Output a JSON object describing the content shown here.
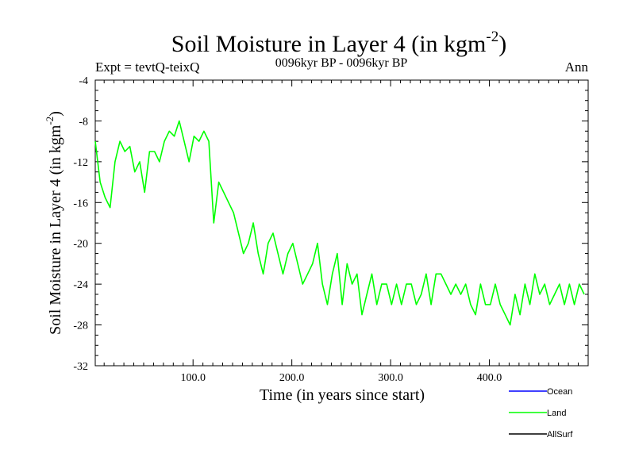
{
  "chart_data": {
    "type": "line",
    "title": "Soil Moisture in Layer 4 (in kgm",
    "title_sup": "-2",
    "title_close": ")",
    "subtitle": "0096kyr BP - 0096kyr BP",
    "expt_label": "Expt = tevtQ-teixQ",
    "season_label": "Ann",
    "xlabel": "Time (in years since start)",
    "ylabel": "Soil Moisture in Layer 4 (in kgm",
    "ylabel_sup": "-2",
    "ylabel_close": ")",
    "xlim": [
      1,
      500
    ],
    "ylim": [
      -32,
      -4
    ],
    "x_ticks": [
      100,
      200,
      300,
      400
    ],
    "x_tick_labels": [
      "100.0",
      "200.0",
      "300.0",
      "400.0"
    ],
    "y_ticks": [
      -4,
      -8,
      -12,
      -16,
      -20,
      -24,
      -28,
      -32
    ],
    "y_tick_labels": [
      "-4",
      "-8",
      "-12",
      "-16",
      "-20",
      "-24",
      "-28",
      "-32"
    ],
    "legend": [
      {
        "name": "Ocean",
        "color": "#0000ff"
      },
      {
        "name": "Land",
        "color": "#00ff00"
      },
      {
        "name": "AllSurf",
        "color": "#000000"
      }
    ],
    "series": [
      {
        "name": "Land",
        "color": "#00ff00",
        "x_start": 1,
        "x_step": 5,
        "values": [
          -10,
          -14,
          -15.5,
          -16.5,
          -12,
          -10,
          -11,
          -10.5,
          -13,
          -12,
          -15,
          -11,
          -11,
          -12,
          -10,
          -9,
          -9.5,
          -8,
          -10,
          -12,
          -9.5,
          -10,
          -9,
          -10,
          -18,
          -14,
          -15,
          -16,
          -17,
          -19,
          -21,
          -20,
          -18,
          -21,
          -23,
          -20,
          -19,
          -21,
          -23,
          -21,
          -20,
          -22,
          -24,
          -23,
          -22,
          -20,
          -24,
          -26,
          -23,
          -21,
          -26,
          -22,
          -24,
          -23,
          -27,
          -25,
          -23,
          -26,
          -24,
          -24,
          -26,
          -24,
          -26,
          -24,
          -24,
          -26,
          -25,
          -23,
          -26,
          -23,
          -23,
          -24,
          -25,
          -24,
          -25,
          -24,
          -26,
          -27,
          -24,
          -26,
          -26,
          -24,
          -26,
          -27,
          -28,
          -25,
          -27,
          -24,
          -26,
          -23,
          -25,
          -24,
          -26,
          -25,
          -24,
          -26,
          -24,
          -26,
          -24,
          -25
        ]
      },
      {
        "name": "Ocean",
        "color": "#0000ff",
        "values": []
      },
      {
        "name": "AllSurf",
        "color": "#000000",
        "values": []
      }
    ]
  }
}
